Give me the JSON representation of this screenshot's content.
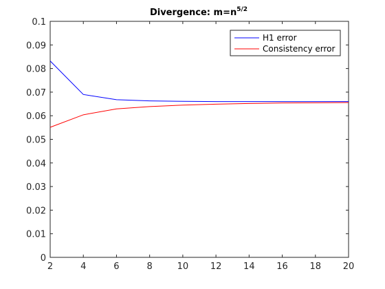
{
  "chart_data": {
    "type": "line",
    "title": "Divergence: m=n",
    "title_superscript": "5/2",
    "xlabel": "",
    "ylabel": "",
    "xlim": [
      2,
      20
    ],
    "ylim": [
      0,
      0.1
    ],
    "xticks": [
      "2",
      "4",
      "6",
      "8",
      "10",
      "12",
      "14",
      "16",
      "18",
      "20"
    ],
    "yticks": [
      "0",
      "0.01",
      "0.02",
      "0.03",
      "0.04",
      "0.05",
      "0.06",
      "0.07",
      "0.08",
      "0.09",
      "0.1"
    ],
    "grid": false,
    "legend_position": "top-right",
    "x": [
      2,
      4,
      6,
      8,
      10,
      12,
      14,
      16,
      18,
      20
    ],
    "series": [
      {
        "name": "H1 error",
        "color": "#0000ff",
        "values": [
          0.0832,
          0.069,
          0.0668,
          0.0663,
          0.0661,
          0.066,
          0.066,
          0.066,
          0.066,
          0.066
        ]
      },
      {
        "name": "Consistency error",
        "color": "#ff0000",
        "values": [
          0.0551,
          0.0604,
          0.0629,
          0.0639,
          0.0645,
          0.0649,
          0.0652,
          0.0654,
          0.0655,
          0.0656
        ]
      }
    ]
  }
}
